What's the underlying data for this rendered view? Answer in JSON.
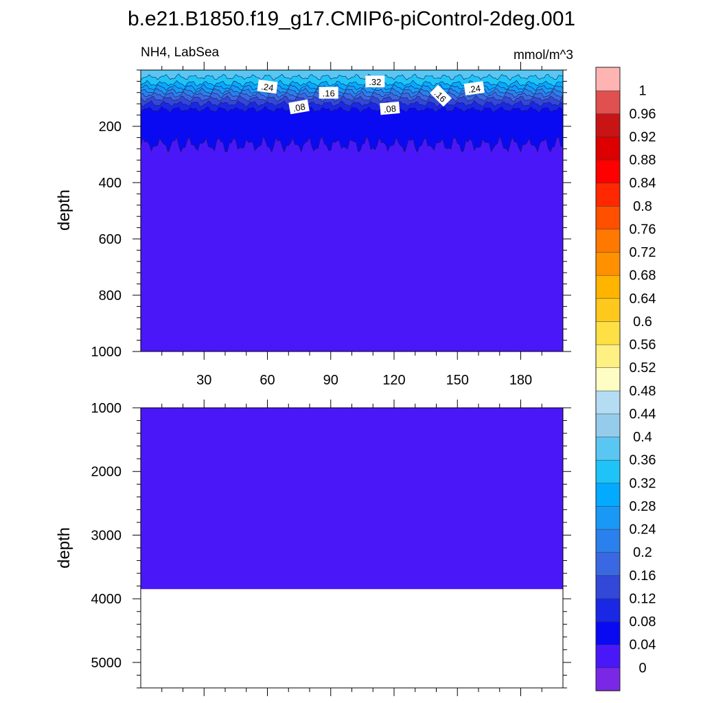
{
  "chart_data": {
    "type": "heatmap",
    "title": "b.e21.B1850.f19_g17.CMIP6-piControl-2deg.001",
    "left_label": "NH4, LabSea",
    "right_label": "mmol/m^3",
    "x": {
      "range": [
        0,
        200
      ],
      "ticks": [
        30,
        60,
        90,
        120,
        150,
        180
      ],
      "tick_labels": [
        "30",
        "60",
        "90",
        "120",
        "150",
        "180"
      ]
    },
    "top_panel": {
      "ylabel": "depth",
      "ylim": [
        0,
        1000
      ],
      "yticks": [
        200,
        400,
        600,
        800,
        1000
      ],
      "ytick_labels": [
        "200",
        "400",
        "600",
        "800",
        "1000"
      ],
      "contour_labels": [
        {
          "text": ".24",
          "x": 60,
          "depth": 60,
          "angle": 8
        },
        {
          "text": ".16",
          "x": 89,
          "depth": 82,
          "angle": 0
        },
        {
          "text": ".32",
          "x": 111,
          "depth": 42,
          "angle": 0
        },
        {
          "text": ".08",
          "x": 75,
          "depth": 132,
          "angle": -10
        },
        {
          "text": ".08",
          "x": 118,
          "depth": 137,
          "angle": -5
        },
        {
          "text": ".16",
          "x": 142,
          "depth": 92,
          "angle": 45
        },
        {
          "text": ".24",
          "x": 158,
          "depth": 66,
          "angle": -8
        }
      ],
      "layers": [
        {
          "value_range": [
            0.36,
            0.4
          ],
          "depth_from": 0,
          "depth_to": 25
        },
        {
          "value_range": [
            0.32,
            0.36
          ],
          "depth_from": 25,
          "depth_to": 48
        },
        {
          "value_range": [
            0.28,
            0.32
          ],
          "depth_from": 48,
          "depth_to": 62
        },
        {
          "value_range": [
            0.24,
            0.28
          ],
          "depth_from": 62,
          "depth_to": 75
        },
        {
          "value_range": [
            0.2,
            0.24
          ],
          "depth_from": 75,
          "depth_to": 88
        },
        {
          "value_range": [
            0.16,
            0.2
          ],
          "depth_from": 88,
          "depth_to": 102
        },
        {
          "value_range": [
            0.12,
            0.16
          ],
          "depth_from": 102,
          "depth_to": 120
        },
        {
          "value_range": [
            0.08,
            0.12
          ],
          "depth_from": 120,
          "depth_to": 140
        },
        {
          "value_range": [
            0.04,
            0.08
          ],
          "depth_from": 140,
          "depth_to": 265
        },
        {
          "value_range": [
            0.0,
            0.04
          ],
          "depth_from": 265,
          "depth_to": 1000
        }
      ]
    },
    "bottom_panel": {
      "ylabel": "depth",
      "ylim": [
        1000,
        5400
      ],
      "yticks": [
        1000,
        2000,
        3000,
        4000,
        5000
      ],
      "ytick_labels": [
        "1000",
        "2000",
        "3000",
        "4000",
        "5000"
      ],
      "layers": [
        {
          "value_range": [
            0.0,
            0.04
          ],
          "depth_from": 1000,
          "depth_to": 3850
        }
      ],
      "no_data_below_depth": 3850
    },
    "colorbar": {
      "levels": [
        0,
        0.04,
        0.08,
        0.12,
        0.16,
        0.2,
        0.24,
        0.28,
        0.32,
        0.36,
        0.4,
        0.44,
        0.48,
        0.52,
        0.56,
        0.6,
        0.64,
        0.68,
        0.72,
        0.76,
        0.8,
        0.84,
        0.88,
        0.92,
        0.96,
        1
      ],
      "labels": [
        "0",
        "0.04",
        "0.08",
        "0.12",
        "0.16",
        "0.2",
        "0.24",
        "0.28",
        "0.32",
        "0.36",
        "0.4",
        "0.44",
        "0.48",
        "0.52",
        "0.56",
        "0.6",
        "0.64",
        "0.68",
        "0.72",
        "0.76",
        "0.8",
        "0.84",
        "0.88",
        "0.92",
        "0.96",
        "1"
      ],
      "colors": [
        "#7a28e6",
        "#4a18f8",
        "#0a0af2",
        "#1a28e6",
        "#3248d8",
        "#3a68e2",
        "#2a80ec",
        "#1a98f6",
        "#04aaff",
        "#1ec4f8",
        "#5ac6f2",
        "#96cceb",
        "#b4dcf2",
        "#fefec4",
        "#fff084",
        "#ffe044",
        "#ffc81c",
        "#ffb400",
        "#ff9000",
        "#ff7800",
        "#ff5000",
        "#ff2800",
        "#ff0000",
        "#dc0000",
        "#c81414",
        "#e05050",
        "#ffb4b4"
      ]
    }
  }
}
